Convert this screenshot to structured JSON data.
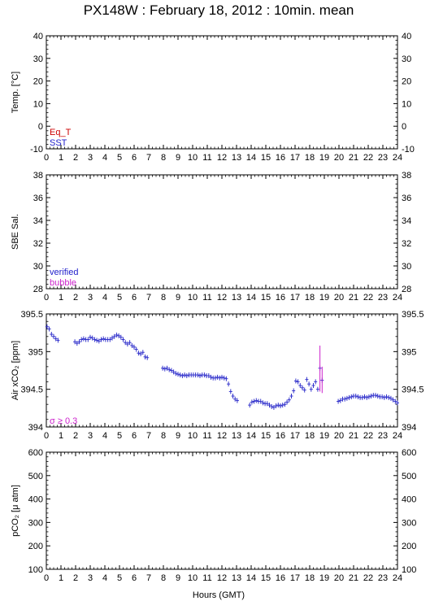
{
  "title": "PX148W : February 18, 2012 : 10min. mean",
  "xlabel": "Hours (GMT)",
  "x_ticks": [
    "0",
    "1",
    "2",
    "3",
    "4",
    "5",
    "6",
    "7",
    "8",
    "9",
    "10",
    "11",
    "12",
    "13",
    "14",
    "15",
    "16",
    "17",
    "18",
    "19",
    "20",
    "21",
    "22",
    "23",
    "24"
  ],
  "colors": {
    "red": "#cc0000",
    "blue": "#2222cc",
    "magenta": "#cc22cc",
    "point": "#3333cc"
  },
  "chart_data": [
    {
      "type": "scatter",
      "ylabel": "Temp. [°C]",
      "ylim": [
        -10,
        40
      ],
      "yticks": [
        "-10",
        "0",
        "10",
        "20",
        "30",
        "40"
      ],
      "legend": [
        {
          "label": "Eq_T",
          "color": "#cc0000"
        },
        {
          "label": "SST",
          "color": "#2222cc"
        }
      ],
      "series": []
    },
    {
      "type": "scatter",
      "ylabel": "SBE Sal.",
      "ylim": [
        28,
        38
      ],
      "yticks": [
        "28",
        "30",
        "32",
        "34",
        "36",
        "38"
      ],
      "legend": [
        {
          "label": "verified",
          "color": "#2222cc"
        },
        {
          "label": "bubble",
          "color": "#cc22cc"
        }
      ],
      "series": []
    },
    {
      "type": "scatter",
      "ylabel": "Air xCO₂ [ppm]",
      "ylim": [
        394,
        395.5
      ],
      "yticks": [
        "394",
        "394.5",
        "395",
        "395.5"
      ],
      "legend": [
        {
          "label": "σ ≥ 0.3",
          "color": "#cc22cc"
        }
      ],
      "series": [
        {
          "points": [
            [
              0.05,
              395.33
            ],
            [
              0.2,
              395.3
            ],
            [
              0.35,
              395.23
            ],
            [
              0.5,
              395.2
            ],
            [
              0.65,
              395.17
            ],
            [
              0.8,
              395.15
            ],
            [
              1.95,
              395.13
            ],
            [
              2.1,
              395.11
            ],
            [
              2.25,
              395.13
            ],
            [
              2.4,
              395.16
            ],
            [
              2.55,
              395.17
            ],
            [
              2.7,
              395.16
            ],
            [
              2.85,
              395.16
            ],
            [
              3.0,
              395.19
            ],
            [
              3.15,
              395.18
            ],
            [
              3.3,
              395.16
            ],
            [
              3.45,
              395.15
            ],
            [
              3.6,
              395.14
            ],
            [
              3.75,
              395.16
            ],
            [
              3.9,
              395.17
            ],
            [
              4.05,
              395.16
            ],
            [
              4.2,
              395.16
            ],
            [
              4.35,
              395.16
            ],
            [
              4.5,
              395.18
            ],
            [
              4.65,
              395.2
            ],
            [
              4.8,
              395.22
            ],
            [
              4.95,
              395.21
            ],
            [
              5.1,
              395.19
            ],
            [
              5.25,
              395.16
            ],
            [
              5.4,
              395.12
            ],
            [
              5.55,
              395.1
            ],
            [
              5.7,
              395.12
            ],
            [
              5.85,
              395.08
            ],
            [
              6.0,
              395.06
            ],
            [
              6.15,
              395.03
            ],
            [
              6.3,
              394.98
            ],
            [
              6.45,
              394.97
            ],
            [
              6.6,
              394.99
            ],
            [
              6.75,
              394.93
            ],
            [
              6.9,
              394.92
            ],
            [
              7.95,
              394.78
            ],
            [
              8.1,
              394.77
            ],
            [
              8.25,
              394.78
            ],
            [
              8.4,
              394.76
            ],
            [
              8.55,
              394.75
            ],
            [
              8.7,
              394.73
            ],
            [
              8.85,
              394.71
            ],
            [
              9.0,
              394.7
            ],
            [
              9.15,
              394.69
            ],
            [
              9.3,
              394.68
            ],
            [
              9.45,
              394.69
            ],
            [
              9.6,
              394.68
            ],
            [
              9.75,
              394.69
            ],
            [
              9.9,
              394.69
            ],
            [
              10.05,
              394.69
            ],
            [
              10.2,
              394.69
            ],
            [
              10.35,
              394.69
            ],
            [
              10.5,
              394.68
            ],
            [
              10.65,
              394.69
            ],
            [
              10.8,
              394.69
            ],
            [
              10.95,
              394.68
            ],
            [
              11.1,
              394.68
            ],
            [
              11.25,
              394.66
            ],
            [
              11.4,
              394.65
            ],
            [
              11.55,
              394.65
            ],
            [
              11.7,
              394.66
            ],
            [
              11.85,
              394.65
            ],
            [
              12.0,
              394.66
            ],
            [
              12.15,
              394.65
            ],
            [
              12.3,
              394.64
            ],
            [
              12.45,
              394.57
            ],
            [
              12.6,
              394.47
            ],
            [
              12.75,
              394.41
            ],
            [
              12.9,
              394.37
            ],
            [
              13.05,
              394.35
            ],
            [
              13.9,
              394.29
            ],
            [
              14.05,
              394.33
            ],
            [
              14.2,
              394.34
            ],
            [
              14.35,
              394.35
            ],
            [
              14.5,
              394.34
            ],
            [
              14.65,
              394.34
            ],
            [
              14.8,
              394.32
            ],
            [
              14.95,
              394.31
            ],
            [
              15.1,
              394.31
            ],
            [
              15.25,
              394.29
            ],
            [
              15.4,
              394.27
            ],
            [
              15.55,
              394.26
            ],
            [
              15.7,
              394.28
            ],
            [
              15.85,
              394.29
            ],
            [
              16.0,
              394.28
            ],
            [
              16.15,
              394.29
            ],
            [
              16.3,
              394.3
            ],
            [
              16.45,
              394.33
            ],
            [
              16.6,
              394.36
            ],
            [
              16.75,
              394.41
            ],
            [
              16.9,
              394.48
            ],
            [
              17.05,
              394.61
            ],
            [
              17.2,
              394.6
            ],
            [
              17.35,
              394.55
            ],
            [
              17.5,
              394.52
            ],
            [
              17.65,
              394.49
            ],
            [
              17.8,
              394.63
            ],
            [
              17.95,
              394.57
            ],
            [
              18.1,
              394.5
            ],
            [
              18.25,
              394.55
            ],
            [
              18.4,
              394.6
            ],
            [
              18.55,
              394.5
            ],
            [
              18.7,
              394.78
            ],
            [
              18.85,
              394.62
            ],
            [
              19.95,
              394.34
            ],
            [
              20.1,
              394.35
            ],
            [
              20.25,
              394.37
            ],
            [
              20.4,
              394.37
            ],
            [
              20.55,
              394.38
            ],
            [
              20.7,
              394.39
            ],
            [
              20.85,
              394.4
            ],
            [
              21.0,
              394.41
            ],
            [
              21.15,
              394.41
            ],
            [
              21.3,
              394.4
            ],
            [
              21.45,
              394.39
            ],
            [
              21.6,
              394.39
            ],
            [
              21.75,
              394.4
            ],
            [
              21.9,
              394.39
            ],
            [
              22.05,
              394.4
            ],
            [
              22.2,
              394.41
            ],
            [
              22.35,
              394.42
            ],
            [
              22.5,
              394.42
            ],
            [
              22.65,
              394.41
            ],
            [
              22.8,
              394.4
            ],
            [
              22.95,
              394.4
            ],
            [
              23.1,
              394.39
            ],
            [
              23.25,
              394.4
            ],
            [
              23.4,
              394.39
            ],
            [
              23.55,
              394.38
            ],
            [
              23.7,
              394.36
            ],
            [
              23.85,
              394.34
            ],
            [
              24.0,
              394.32
            ]
          ],
          "error_bars_high_sigma": [
            [
              18.7,
              394.47,
              395.08
            ],
            [
              18.85,
              394.45,
              394.8
            ]
          ]
        }
      ]
    },
    {
      "type": "scatter",
      "ylabel": "pCO₂ [μ atm]",
      "ylim": [
        100,
        600
      ],
      "yticks": [
        "100",
        "200",
        "300",
        "400",
        "500",
        "600"
      ],
      "legend": [],
      "series": []
    }
  ]
}
